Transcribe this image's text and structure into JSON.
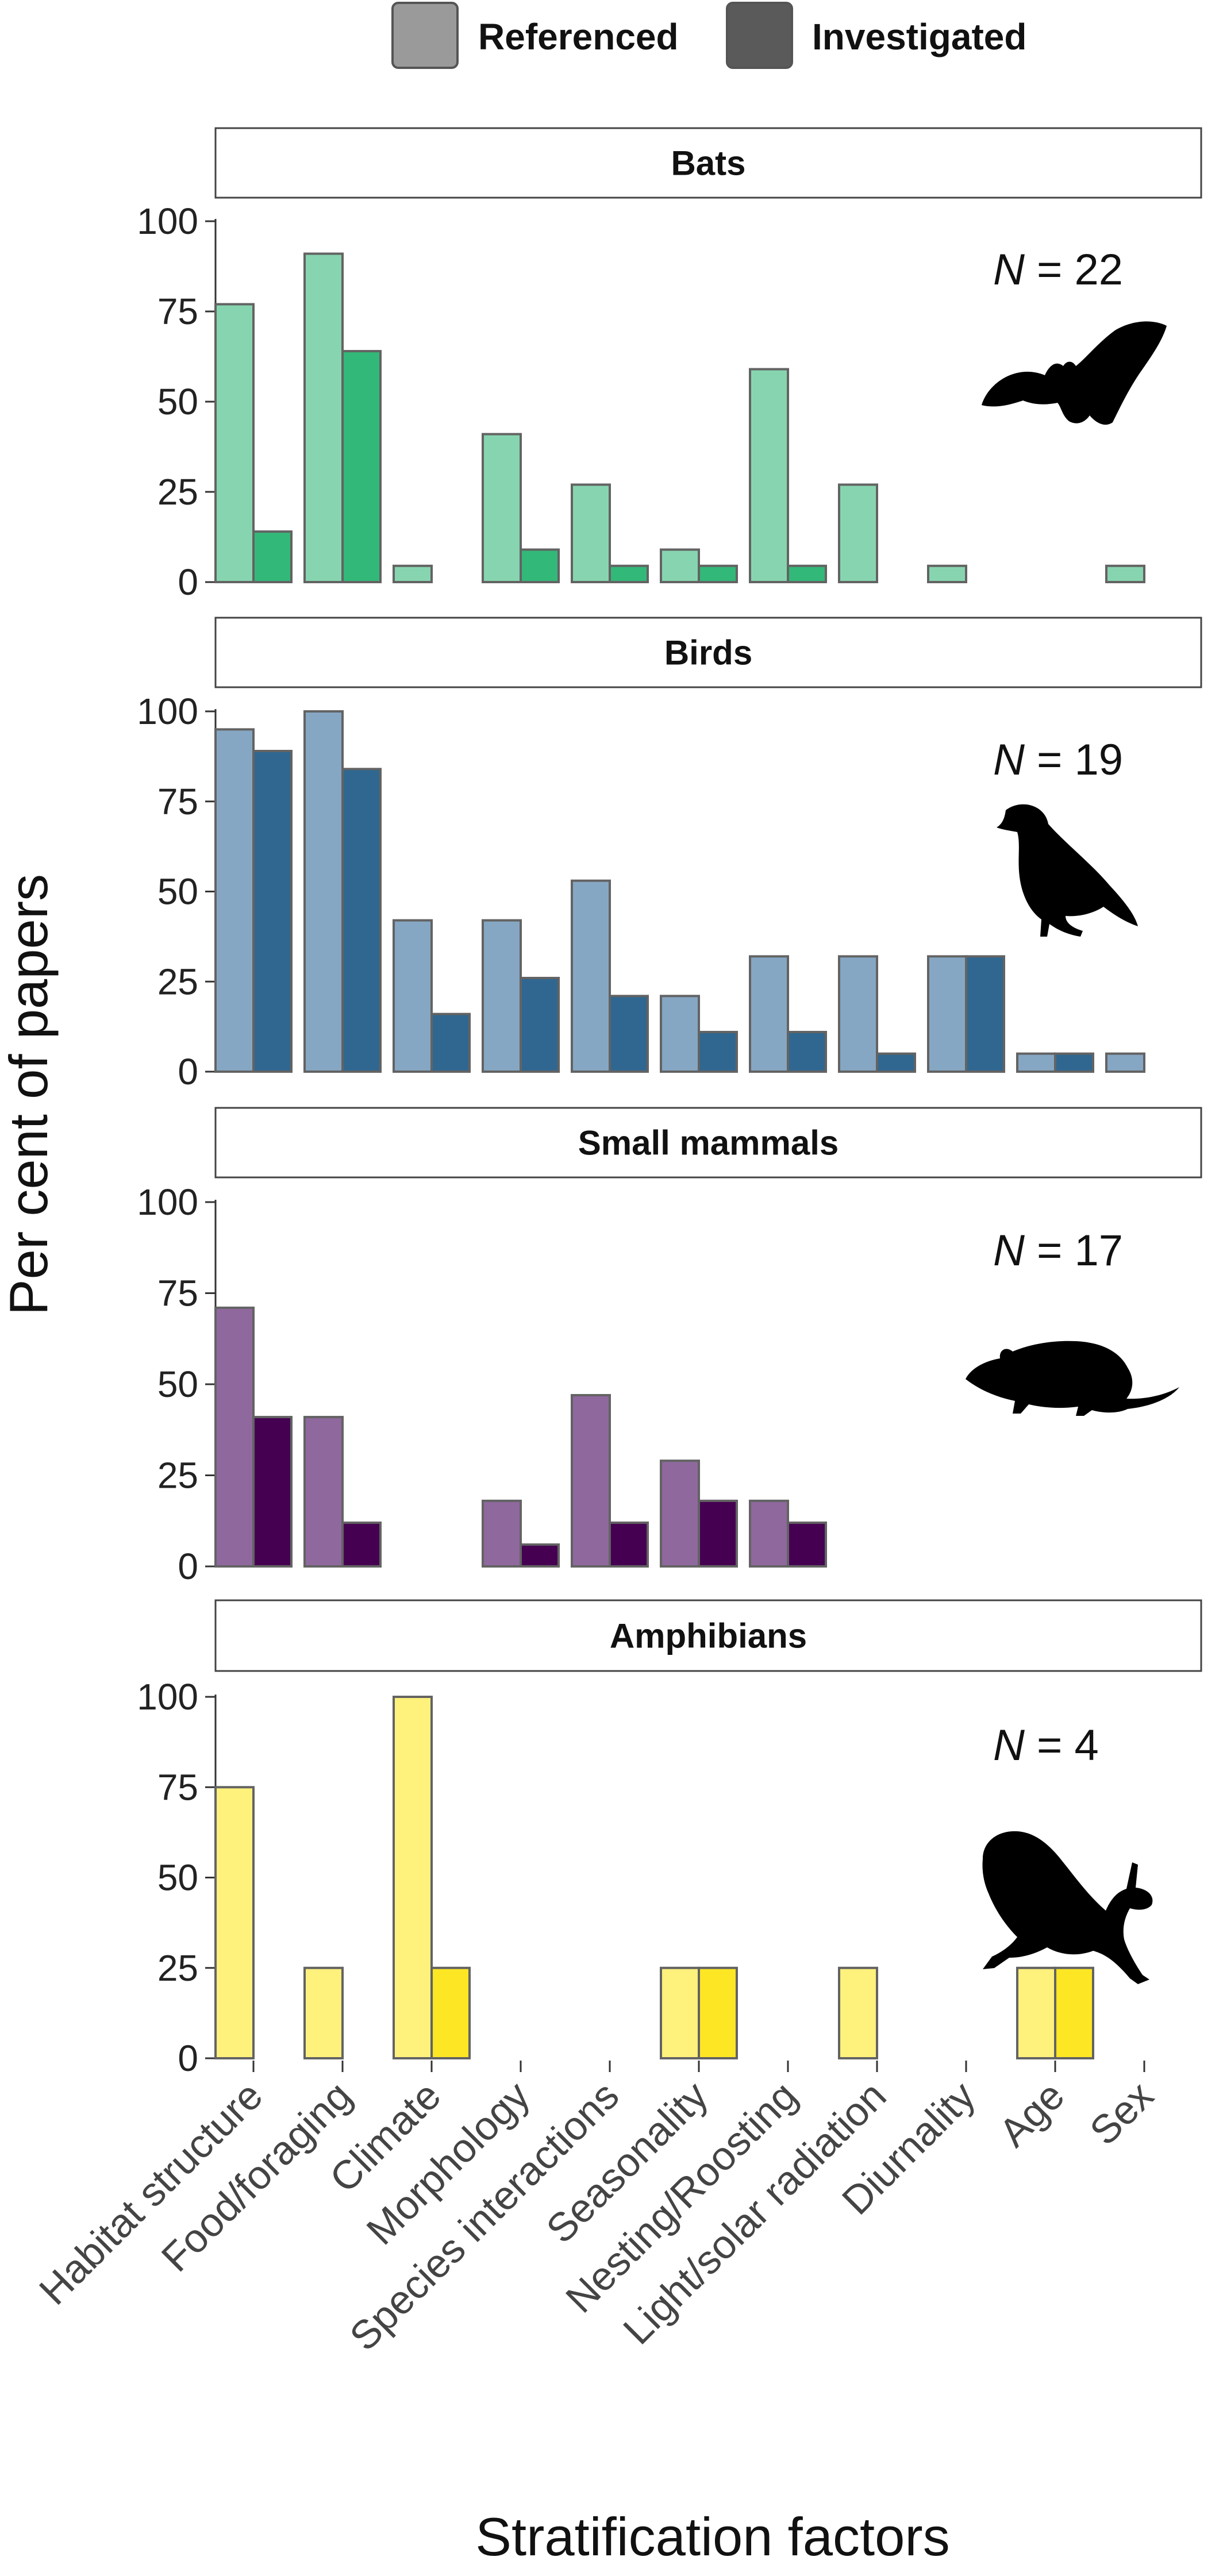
{
  "chart_data": {
    "type": "bar",
    "xlabel": "Stratification factors",
    "ylabel": "Per cent of papers",
    "ylim": [
      0,
      100
    ],
    "yticks": [
      "0",
      "25",
      "50",
      "75",
      "100"
    ],
    "grid": false,
    "legend": {
      "placement": "top",
      "entries": [
        "Referenced",
        "Investigated"
      ]
    },
    "categories": [
      "Habitat structure",
      "Food/foraging",
      "Climate",
      "Morphology",
      "Species interactions",
      "Seasonality",
      "Nesting/Roosting",
      "Light/solar radiation",
      "Diurnality",
      "Age",
      "Sex"
    ],
    "panels": [
      {
        "title": "Bats",
        "n_label": "N = 22",
        "colors": {
          "referenced": "#87d5b0",
          "investigated": "#32b878"
        },
        "icon": "bat-silhouette-icon",
        "series": [
          {
            "name": "Referenced",
            "values": [
              77,
              91,
              4.5,
              41,
              27,
              9,
              59,
              27,
              4.5,
              0,
              4.5
            ]
          },
          {
            "name": "Investigated",
            "values": [
              14,
              64,
              0,
              9,
              4.5,
              4.5,
              4.5,
              0,
              0,
              0,
              0
            ]
          }
        ]
      },
      {
        "title": "Birds",
        "n_label": "N = 19",
        "colors": {
          "referenced": "#86a7c3",
          "investigated": "#2f6790"
        },
        "icon": "bird-silhouette-icon",
        "series": [
          {
            "name": "Referenced",
            "values": [
              95,
              100,
              42,
              42,
              53,
              21,
              32,
              32,
              32,
              5,
              5
            ]
          },
          {
            "name": "Investigated",
            "values": [
              89,
              84,
              16,
              26,
              21,
              11,
              11,
              5,
              32,
              5,
              0
            ]
          }
        ]
      },
      {
        "title": "Small mammals",
        "n_label": "N = 17",
        "colors": {
          "referenced": "#8f689e",
          "investigated": "#450052"
        },
        "icon": "mammal-silhouette-icon",
        "series": [
          {
            "name": "Referenced",
            "values": [
              71,
              41,
              0,
              18,
              47,
              29,
              18,
              0,
              0,
              0,
              0
            ]
          },
          {
            "name": "Investigated",
            "values": [
              41,
              12,
              0,
              6,
              12,
              18,
              12,
              0,
              0,
              0,
              0
            ]
          }
        ]
      },
      {
        "title": "Amphibians",
        "n_label": "N = 4",
        "colors": {
          "referenced": "#fef17c",
          "investigated": "#fde624"
        },
        "icon": "frog-silhouette-icon",
        "series": [
          {
            "name": "Referenced",
            "values": [
              75,
              25,
              100,
              0,
              0,
              25,
              0,
              25,
              0,
              25,
              0
            ]
          },
          {
            "name": "Investigated",
            "values": [
              0,
              0,
              25,
              0,
              0,
              25,
              0,
              0,
              0,
              25,
              0
            ]
          }
        ]
      }
    ]
  }
}
